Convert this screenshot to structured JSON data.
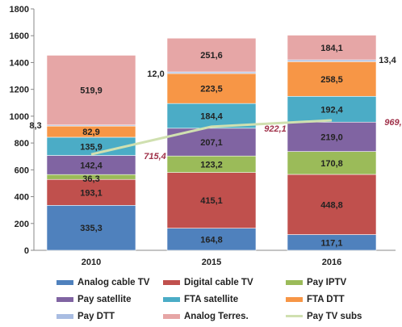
{
  "chart_data": {
    "type": "bar",
    "stacked": true,
    "categories": [
      "2010",
      "2015",
      "2016"
    ],
    "ylim": [
      0,
      1800
    ],
    "yticks": [
      0,
      200,
      400,
      600,
      800,
      1000,
      1200,
      1400,
      1600,
      1800
    ],
    "grid": false,
    "legend_position": "bottom",
    "series": [
      {
        "name": "Analog cable TV",
        "color": "#4f81bd",
        "values": [
          335.3,
          164.8,
          117.1
        ],
        "labels": [
          "335,3",
          "164,8",
          "117,1"
        ]
      },
      {
        "name": "Digital cable TV",
        "color": "#c0504d",
        "values": [
          193.1,
          415.1,
          448.8
        ],
        "labels": [
          "193,1",
          "415,1",
          "448,8"
        ]
      },
      {
        "name": "Pay IPTV",
        "color": "#9bbb59",
        "values": [
          36.3,
          123.2,
          170.8
        ],
        "labels": [
          "36,3",
          "123,2",
          "170,8"
        ]
      },
      {
        "name": "Pay satellite",
        "color": "#8064a2",
        "values": [
          142.4,
          207.1,
          219.0
        ],
        "labels": [
          "142,4",
          "207,1",
          "219,0"
        ]
      },
      {
        "name": "FTA satellite",
        "color": "#4bacc6",
        "values": [
          135.9,
          184.4,
          192.4
        ],
        "labels": [
          "135,9",
          "184,4",
          "192,4"
        ]
      },
      {
        "name": "FTA DTT",
        "color": "#f79646",
        "values": [
          82.9,
          223.5,
          258.5
        ],
        "labels": [
          "82,9",
          "223,5",
          "258,5"
        ]
      },
      {
        "name": "Pay DTT",
        "color": "#a9bde2",
        "values": [
          8.3,
          12.0,
          13.4
        ],
        "labels": [
          "8,3",
          "12,0",
          "13,4"
        ]
      },
      {
        "name": "Analog Terres.",
        "color": "#e6a6a6",
        "values": [
          519.9,
          251.6,
          184.1
        ],
        "labels": [
          "519,9",
          "251,6",
          "184,1"
        ]
      }
    ],
    "line_series": {
      "name": "Pay TV subs",
      "color": "#d0e0b0",
      "values": [
        715.4,
        922.1,
        969.0
      ],
      "labels": [
        "715,4",
        "922,1",
        "969,0"
      ],
      "label_color": "#a0324a"
    }
  },
  "legend": {
    "rows": [
      [
        {
          "name": "Analog cable TV",
          "color": "#4f81bd"
        },
        {
          "name": "Digital cable TV",
          "color": "#c0504d"
        },
        {
          "name": "Pay IPTV",
          "color": "#9bbb59"
        }
      ],
      [
        {
          "name": "Pay satellite",
          "color": "#8064a2"
        },
        {
          "name": "FTA satellite",
          "color": "#4bacc6"
        },
        {
          "name": "FTA DTT",
          "color": "#f79646"
        }
      ],
      [
        {
          "name": "Pay DTT",
          "color": "#a9bde2"
        },
        {
          "name": "Analog Terres.",
          "color": "#e6a6a6"
        },
        {
          "name": "Pay TV subs",
          "color": "#d0e0b0",
          "line": true
        }
      ]
    ]
  }
}
